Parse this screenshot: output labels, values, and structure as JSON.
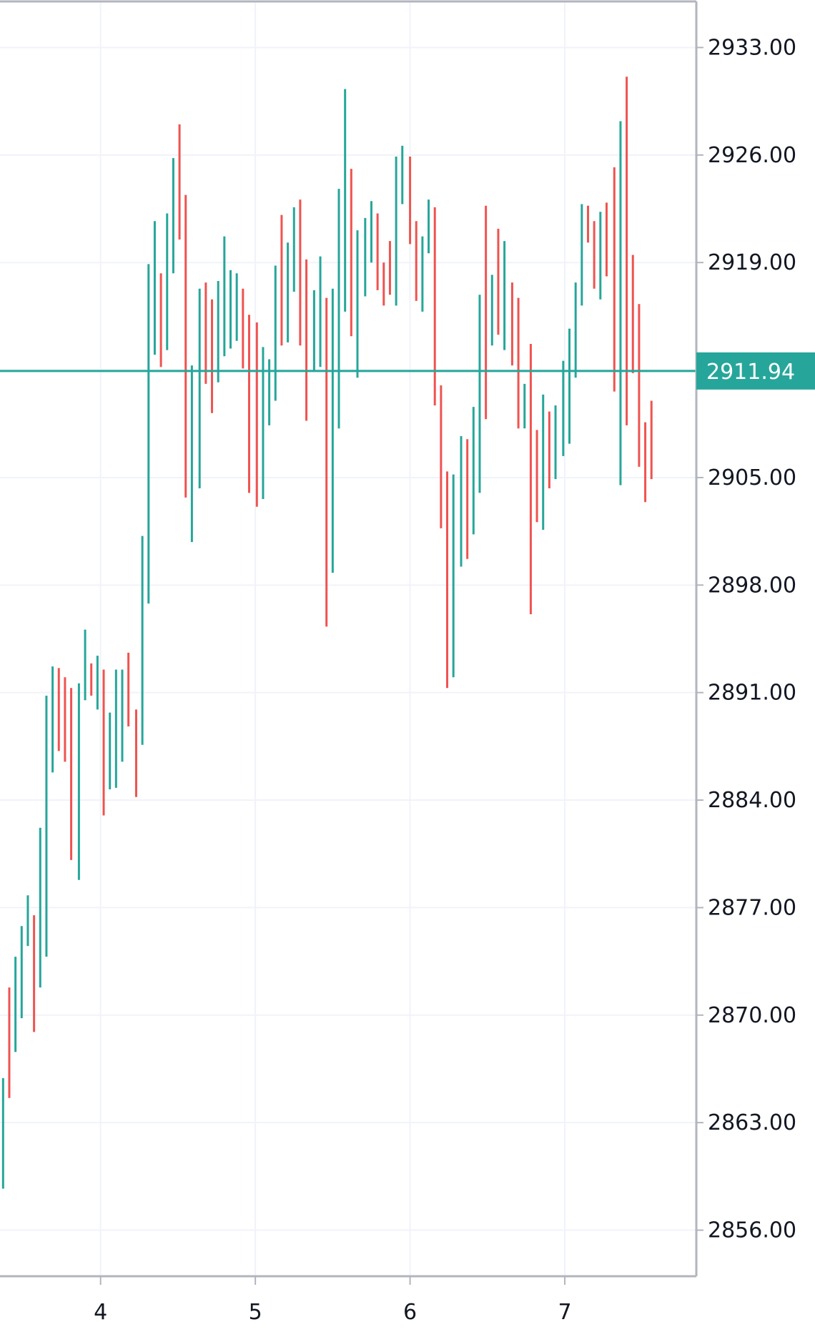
{
  "chart_data": {
    "type": "bar",
    "style": "ohlc-range-bars",
    "x_axis": {
      "ticks": [
        {
          "label": "4",
          "x": 4
        },
        {
          "label": "5",
          "x": 5
        },
        {
          "label": "6",
          "x": 6
        },
        {
          "label": "7",
          "x": 7
        }
      ],
      "range": [
        3.35,
        7.85
      ]
    },
    "y_axis": {
      "ticks": [
        "2856.00",
        "2863.00",
        "2870.00",
        "2877.00",
        "2884.00",
        "2891.00",
        "2898.00",
        "2905.00",
        "2912.00",
        "2919.00",
        "2926.00",
        "2933.00"
      ],
      "visible_ticks": [
        "2856.00",
        "2863.00",
        "2870.00",
        "2877.00",
        "2884.00",
        "2891.00",
        "2898.00",
        "2905.00",
        "2919.00",
        "2926.00",
        "2933.00"
      ],
      "range": [
        2853.0,
        2936.0
      ],
      "position": "right"
    },
    "grid": true,
    "current_price": {
      "value": 2911.94,
      "label": "2911.94"
    },
    "colors": {
      "up": "#26a69a",
      "down": "#ef5350",
      "grid": "#f0f3fa",
      "axis": "#b2b5be",
      "text": "#131722",
      "price_line": "#26a69a"
    },
    "bars": [
      {
        "x": 3.37,
        "high": 2865.9,
        "low": 2858.7,
        "dir": "up"
      },
      {
        "x": 3.41,
        "high": 2871.8,
        "low": 2864.6,
        "dir": "down"
      },
      {
        "x": 3.45,
        "high": 2873.8,
        "low": 2867.6,
        "dir": "up"
      },
      {
        "x": 3.49,
        "high": 2875.8,
        "low": 2869.8,
        "dir": "up"
      },
      {
        "x": 3.53,
        "high": 2877.8,
        "low": 2874.5,
        "dir": "up"
      },
      {
        "x": 3.57,
        "high": 2876.5,
        "low": 2868.9,
        "dir": "down"
      },
      {
        "x": 3.61,
        "high": 2882.2,
        "low": 2871.8,
        "dir": "up"
      },
      {
        "x": 3.65,
        "high": 2890.8,
        "low": 2873.8,
        "dir": "up"
      },
      {
        "x": 3.69,
        "high": 2892.7,
        "low": 2885.8,
        "dir": "up"
      },
      {
        "x": 3.73,
        "high": 2892.6,
        "low": 2887.2,
        "dir": "down"
      },
      {
        "x": 3.77,
        "high": 2892.0,
        "low": 2886.5,
        "dir": "down"
      },
      {
        "x": 3.81,
        "high": 2891.3,
        "low": 2880.1,
        "dir": "down"
      },
      {
        "x": 3.86,
        "high": 2891.6,
        "low": 2878.8,
        "dir": "up"
      },
      {
        "x": 3.9,
        "high": 2895.1,
        "low": 2890.5,
        "dir": "up"
      },
      {
        "x": 3.94,
        "high": 2892.9,
        "low": 2890.8,
        "dir": "down"
      },
      {
        "x": 3.98,
        "high": 2893.4,
        "low": 2889.9,
        "dir": "up"
      },
      {
        "x": 4.02,
        "high": 2892.5,
        "low": 2883.0,
        "dir": "down"
      },
      {
        "x": 4.06,
        "high": 2889.7,
        "low": 2884.7,
        "dir": "up"
      },
      {
        "x": 4.1,
        "high": 2892.5,
        "low": 2884.8,
        "dir": "up"
      },
      {
        "x": 4.14,
        "high": 2892.5,
        "low": 2886.5,
        "dir": "up"
      },
      {
        "x": 4.18,
        "high": 2893.6,
        "low": 2888.8,
        "dir": "down"
      },
      {
        "x": 4.23,
        "high": 2889.9,
        "low": 2884.2,
        "dir": "down"
      },
      {
        "x": 4.27,
        "high": 2901.2,
        "low": 2887.6,
        "dir": "up"
      },
      {
        "x": 4.31,
        "high": 2918.9,
        "low": 2896.8,
        "dir": "up"
      },
      {
        "x": 4.35,
        "high": 2921.7,
        "low": 2913.0,
        "dir": "up"
      },
      {
        "x": 4.39,
        "high": 2918.3,
        "low": 2912.2,
        "dir": "down"
      },
      {
        "x": 4.43,
        "high": 2922.2,
        "low": 2913.3,
        "dir": "up"
      },
      {
        "x": 4.47,
        "high": 2925.8,
        "low": 2918.3,
        "dir": "up"
      },
      {
        "x": 4.51,
        "high": 2928.0,
        "low": 2920.5,
        "dir": "down"
      },
      {
        "x": 4.55,
        "high": 2923.4,
        "low": 2903.7,
        "dir": "down"
      },
      {
        "x": 4.59,
        "high": 2912.3,
        "low": 2900.8,
        "dir": "up"
      },
      {
        "x": 4.64,
        "high": 2917.3,
        "low": 2904.3,
        "dir": "up"
      },
      {
        "x": 4.68,
        "high": 2917.7,
        "low": 2911.1,
        "dir": "down"
      },
      {
        "x": 4.72,
        "high": 2916.6,
        "low": 2909.2,
        "dir": "down"
      },
      {
        "x": 4.76,
        "high": 2917.8,
        "low": 2911.2,
        "dir": "up"
      },
      {
        "x": 4.8,
        "high": 2920.7,
        "low": 2912.9,
        "dir": "up"
      },
      {
        "x": 4.84,
        "high": 2918.5,
        "low": 2913.4,
        "dir": "up"
      },
      {
        "x": 4.88,
        "high": 2918.3,
        "low": 2913.9,
        "dir": "up"
      },
      {
        "x": 4.92,
        "high": 2917.3,
        "low": 2912.1,
        "dir": "down"
      },
      {
        "x": 4.96,
        "high": 2915.6,
        "low": 2904.0,
        "dir": "down"
      },
      {
        "x": 5.01,
        "high": 2915.1,
        "low": 2903.1,
        "dir": "down"
      },
      {
        "x": 5.05,
        "high": 2913.5,
        "low": 2903.6,
        "dir": "up"
      },
      {
        "x": 5.09,
        "high": 2912.7,
        "low": 2908.4,
        "dir": "up"
      },
      {
        "x": 5.13,
        "high": 2918.8,
        "low": 2910.0,
        "dir": "up"
      },
      {
        "x": 5.17,
        "high": 2922.1,
        "low": 2913.6,
        "dir": "down"
      },
      {
        "x": 5.21,
        "high": 2920.3,
        "low": 2913.8,
        "dir": "up"
      },
      {
        "x": 5.25,
        "high": 2922.6,
        "low": 2917.1,
        "dir": "up"
      },
      {
        "x": 5.29,
        "high": 2923.1,
        "low": 2913.6,
        "dir": "down"
      },
      {
        "x": 5.33,
        "high": 2919.2,
        "low": 2908.7,
        "dir": "down"
      },
      {
        "x": 5.38,
        "high": 2917.2,
        "low": 2912.0,
        "dir": "up"
      },
      {
        "x": 5.42,
        "high": 2919.4,
        "low": 2912.2,
        "dir": "up"
      },
      {
        "x": 5.46,
        "high": 2916.7,
        "low": 2895.3,
        "dir": "down"
      },
      {
        "x": 5.5,
        "high": 2917.3,
        "low": 2898.8,
        "dir": "up"
      },
      {
        "x": 5.54,
        "high": 2923.8,
        "low": 2908.2,
        "dir": "up"
      },
      {
        "x": 5.58,
        "high": 2930.3,
        "low": 2915.8,
        "dir": "up"
      },
      {
        "x": 5.62,
        "high": 2925.1,
        "low": 2914.2,
        "dir": "down"
      },
      {
        "x": 5.66,
        "high": 2921.1,
        "low": 2911.5,
        "dir": "up"
      },
      {
        "x": 5.71,
        "high": 2921.9,
        "low": 2916.8,
        "dir": "up"
      },
      {
        "x": 5.75,
        "high": 2923.0,
        "low": 2919.0,
        "dir": "up"
      },
      {
        "x": 5.79,
        "high": 2922.2,
        "low": 2917.2,
        "dir": "down"
      },
      {
        "x": 5.83,
        "high": 2919.0,
        "low": 2916.2,
        "dir": "down"
      },
      {
        "x": 5.87,
        "high": 2920.4,
        "low": 2916.9,
        "dir": "down"
      },
      {
        "x": 5.91,
        "high": 2925.9,
        "low": 2916.2,
        "dir": "up"
      },
      {
        "x": 5.95,
        "high": 2926.6,
        "low": 2922.8,
        "dir": "up"
      },
      {
        "x": 6.0,
        "high": 2925.9,
        "low": 2920.2,
        "dir": "down"
      },
      {
        "x": 6.04,
        "high": 2921.7,
        "low": 2916.5,
        "dir": "down"
      },
      {
        "x": 6.08,
        "high": 2920.7,
        "low": 2915.8,
        "dir": "up"
      },
      {
        "x": 6.12,
        "high": 2923.1,
        "low": 2919.6,
        "dir": "up"
      },
      {
        "x": 6.16,
        "high": 2922.6,
        "low": 2909.7,
        "dir": "down"
      },
      {
        "x": 6.2,
        "high": 2911.0,
        "low": 2901.7,
        "dir": "down"
      },
      {
        "x": 6.24,
        "high": 2905.4,
        "low": 2891.3,
        "dir": "down"
      },
      {
        "x": 6.28,
        "high": 2905.2,
        "low": 2892.0,
        "dir": "up"
      },
      {
        "x": 6.33,
        "high": 2907.7,
        "low": 2899.2,
        "dir": "up"
      },
      {
        "x": 6.37,
        "high": 2907.5,
        "low": 2899.7,
        "dir": "down"
      },
      {
        "x": 6.41,
        "high": 2909.6,
        "low": 2901.3,
        "dir": "up"
      },
      {
        "x": 6.45,
        "high": 2916.9,
        "low": 2904.0,
        "dir": "up"
      },
      {
        "x": 6.49,
        "high": 2922.7,
        "low": 2908.8,
        "dir": "down"
      },
      {
        "x": 6.53,
        "high": 2918.2,
        "low": 2913.6,
        "dir": "up"
      },
      {
        "x": 6.57,
        "high": 2921.2,
        "low": 2914.3,
        "dir": "down"
      },
      {
        "x": 6.61,
        "high": 2920.4,
        "low": 2913.3,
        "dir": "up"
      },
      {
        "x": 6.66,
        "high": 2917.7,
        "low": 2912.3,
        "dir": "down"
      },
      {
        "x": 6.7,
        "high": 2916.7,
        "low": 2908.2,
        "dir": "down"
      },
      {
        "x": 6.74,
        "high": 2911.1,
        "low": 2908.2,
        "dir": "up"
      },
      {
        "x": 6.78,
        "high": 2913.7,
        "low": 2896.1,
        "dir": "down"
      },
      {
        "x": 6.82,
        "high": 2908.1,
        "low": 2902.1,
        "dir": "down"
      },
      {
        "x": 6.86,
        "high": 2910.4,
        "low": 2901.6,
        "dir": "up"
      },
      {
        "x": 6.9,
        "high": 2909.3,
        "low": 2904.3,
        "dir": "down"
      },
      {
        "x": 6.94,
        "high": 2909.7,
        "low": 2904.9,
        "dir": "up"
      },
      {
        "x": 6.99,
        "high": 2912.6,
        "low": 2906.4,
        "dir": "up"
      },
      {
        "x": 7.03,
        "high": 2914.7,
        "low": 2907.2,
        "dir": "up"
      },
      {
        "x": 7.07,
        "high": 2917.7,
        "low": 2911.5,
        "dir": "up"
      },
      {
        "x": 7.11,
        "high": 2922.8,
        "low": 2916.2,
        "dir": "up"
      },
      {
        "x": 7.15,
        "high": 2922.7,
        "low": 2920.3,
        "dir": "down"
      },
      {
        "x": 7.19,
        "high": 2921.7,
        "low": 2917.3,
        "dir": "down"
      },
      {
        "x": 7.23,
        "high": 2922.3,
        "low": 2916.6,
        "dir": "up"
      },
      {
        "x": 7.27,
        "high": 2922.9,
        "low": 2918.1,
        "dir": "down"
      },
      {
        "x": 7.32,
        "high": 2925.2,
        "low": 2910.6,
        "dir": "down"
      },
      {
        "x": 7.36,
        "high": 2928.2,
        "low": 2904.5,
        "dir": "up"
      },
      {
        "x": 7.4,
        "high": 2931.1,
        "low": 2908.4,
        "dir": "down"
      },
      {
        "x": 7.44,
        "high": 2919.5,
        "low": 2911.8,
        "dir": "down"
      },
      {
        "x": 7.48,
        "high": 2916.3,
        "low": 2905.7,
        "dir": "down"
      },
      {
        "x": 7.52,
        "high": 2908.6,
        "low": 2903.4,
        "dir": "down"
      },
      {
        "x": 7.56,
        "high": 2910.0,
        "low": 2904.9,
        "dir": "down"
      }
    ]
  }
}
